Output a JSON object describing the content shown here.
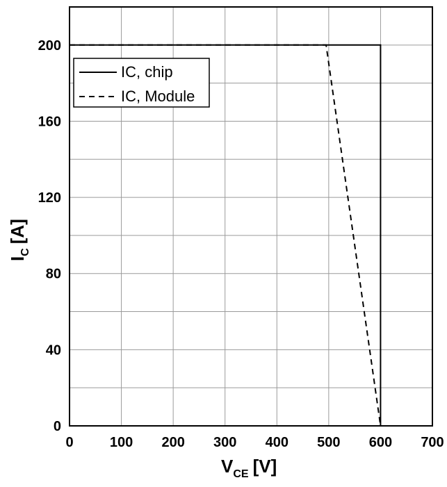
{
  "chart_data": {
    "type": "line",
    "xlabel": {
      "main": "V",
      "sub": "CE",
      "unit": "[V]"
    },
    "ylabel": {
      "main": "I",
      "sub": "C",
      "unit": "[A]"
    },
    "xlim": [
      0,
      700
    ],
    "ylim": [
      0,
      220
    ],
    "x_ticks": [
      0,
      100,
      200,
      300,
      400,
      500,
      600,
      700
    ],
    "y_ticks": [
      0,
      40,
      80,
      120,
      160,
      200
    ],
    "grid": true,
    "legend_position": "top-left",
    "series": [
      {
        "name": "IC, chip",
        "style": "solid",
        "color": "#000000",
        "x": [
          0,
          600,
          600
        ],
        "y": [
          200,
          200,
          0
        ]
      },
      {
        "name": "IC, Module",
        "style": "dashed",
        "color": "#000000",
        "x": [
          0,
          495,
          600
        ],
        "y": [
          200,
          200,
          0
        ]
      }
    ]
  }
}
